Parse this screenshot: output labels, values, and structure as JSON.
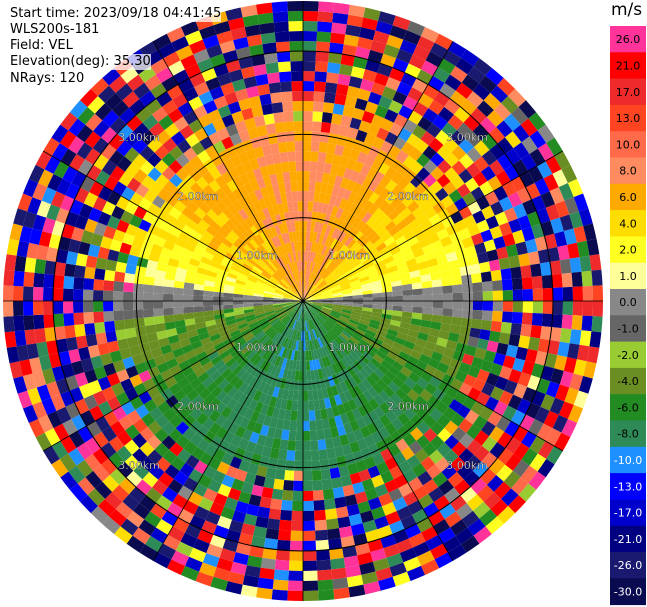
{
  "header": {
    "start_time": "Start time: 2023/09/18 04:41:45",
    "instrument": "WLS200s-181",
    "field": "Field: VEL",
    "elevation": "Elevation(deg): 35.30",
    "nrays": "NRays: 120"
  },
  "colorbar": {
    "unit": "m/s",
    "levels": [
      {
        "label": "26.0",
        "color": "#ff3399"
      },
      {
        "label": "21.0",
        "color": "#ff0000"
      },
      {
        "label": "17.0",
        "color": "#ee2a2a"
      },
      {
        "label": "13.0",
        "color": "#ff4422"
      },
      {
        "label": "10.0",
        "color": "#ff6a4a"
      },
      {
        "label": "8.0",
        "color": "#ff8c60"
      },
      {
        "label": "6.0",
        "color": "#ffaa00"
      },
      {
        "label": "4.0",
        "color": "#ffdd00"
      },
      {
        "label": "2.0",
        "color": "#ffff22"
      },
      {
        "label": "1.0",
        "color": "#ffff99"
      },
      {
        "label": "0.0",
        "color": "#888888"
      },
      {
        "label": "-1.0",
        "color": "#666666"
      },
      {
        "label": "-2.0",
        "color": "#99cc33"
      },
      {
        "label": "-4.0",
        "color": "#6b8e23"
      },
      {
        "label": "-6.0",
        "color": "#228b22"
      },
      {
        "label": "-8.0",
        "color": "#2e8b57"
      },
      {
        "label": "-10.0",
        "color": "#1e90ff"
      },
      {
        "label": "-13.0",
        "color": "#0000ff"
      },
      {
        "label": "-17.0",
        "color": "#0000cd"
      },
      {
        "label": "-21.0",
        "color": "#000080"
      },
      {
        "label": "-26.0",
        "color": "#191970"
      },
      {
        "label": "-30.0",
        "color": "#0a0a50"
      }
    ]
  },
  "chart_data": {
    "type": "heatmap",
    "projection": "polar (PPI)",
    "field": "VEL",
    "nrays": 120,
    "n_gates": 30,
    "max_range_km": 3.6,
    "range_rings_km": [
      1.0,
      2.0,
      3.0
    ],
    "ring_labels": [
      "1.00km",
      "2.00km",
      "3.00km"
    ],
    "spoke_angles_deg": [
      0,
      30,
      60,
      90,
      120,
      150,
      180,
      210,
      240,
      270,
      300,
      330
    ],
    "structure": {
      "near_range_km": 2.3,
      "north_sector_m_s": [
        6.0,
        10.0
      ],
      "east_west_band_m_s": [
        -1.0,
        1.0
      ],
      "south_sector_m_s": [
        -8.0,
        -4.0
      ],
      "far_range": "noise (random values across full scale)"
    }
  }
}
